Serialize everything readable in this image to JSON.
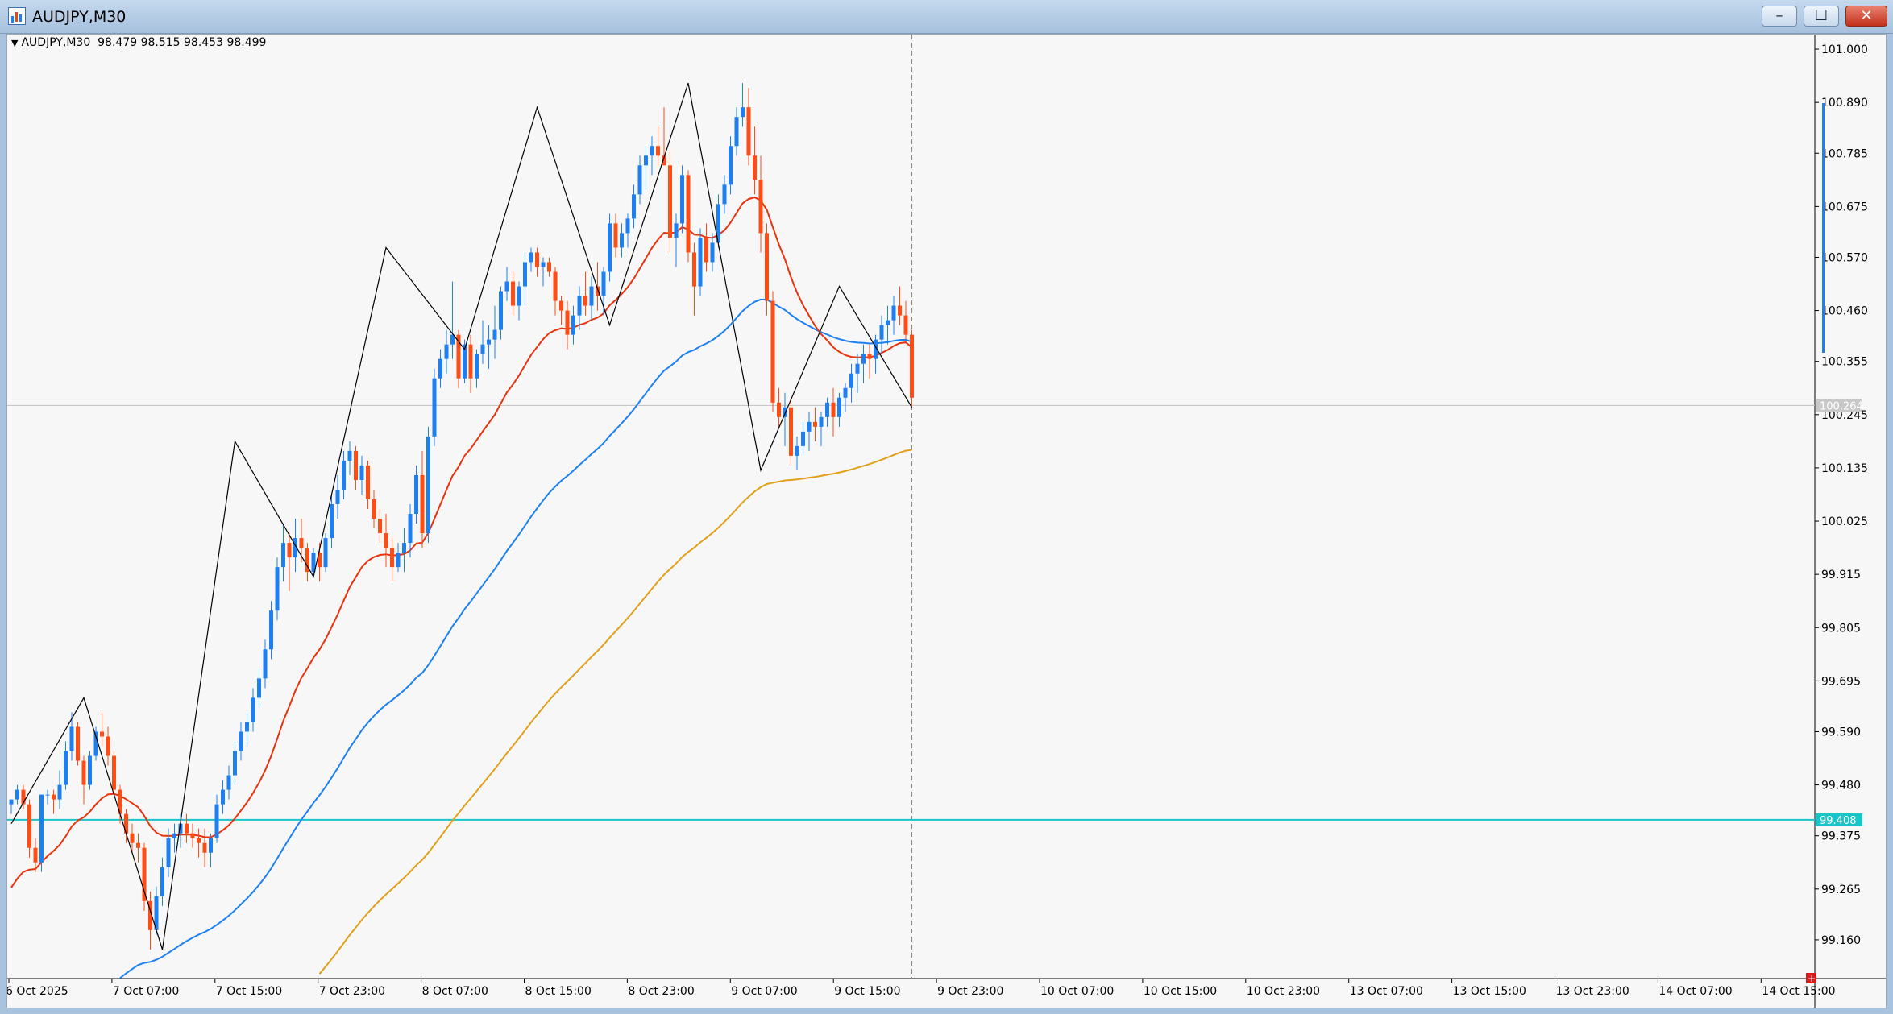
{
  "window": {
    "title": "AUDJPY,M30",
    "buttons": {
      "minimize": "–",
      "maximize": "☐",
      "close": "✕"
    }
  },
  "chart_info": {
    "symbol": "AUDJPY,M30",
    "ohlc": "98.479 98.515 98.453 98.499"
  },
  "colors": {
    "bull": "#1e80f0",
    "bear": "#ff4b14",
    "ma_fast": "#e8330e",
    "ma_mid": "#1e80f0",
    "ma_slow": "#e0a01a",
    "zigzag": "#000000",
    "hline": "#19c5c8",
    "price_line": "#c0c0c0"
  },
  "chart_data": {
    "type": "candlestick",
    "symbol": "AUDJPY",
    "timeframe": "M30",
    "ylim": [
      99.08,
      101.03
    ],
    "y_ticks": [
      "101.000",
      "100.890",
      "100.785",
      "100.675",
      "100.570",
      "100.460",
      "100.355",
      "100.245",
      "100.135",
      "100.025",
      "99.915",
      "99.805",
      "99.695",
      "99.590",
      "99.480",
      "99.375",
      "99.265",
      "99.160"
    ],
    "x_ticks": [
      "6 Oct 2025",
      "7 Oct 07:00",
      "7 Oct 15:00",
      "7 Oct 23:00",
      "8 Oct 07:00",
      "8 Oct 15:00",
      "8 Oct 23:00",
      "9 Oct 07:00",
      "9 Oct 15:00",
      "9 Oct 23:00",
      "10 Oct 07:00",
      "10 Oct 15:00",
      "10 Oct 23:00",
      "13 Oct 07:00",
      "13 Oct 15:00",
      "13 Oct 23:00",
      "14 Oct 07:00",
      "14 Oct 15:00"
    ],
    "current_price": "100.264",
    "horizontal_line": "99.408",
    "zigzag": [
      99.4,
      99.66,
      99.14,
      100.19,
      99.91,
      100.59,
      100.38,
      100.88,
      100.43,
      100.93,
      100.13,
      100.51,
      100.26
    ],
    "candles": [
      [
        99.44,
        99.45,
        99.42,
        99.45
      ],
      [
        99.45,
        99.48,
        99.44,
        99.47
      ],
      [
        99.47,
        99.48,
        99.43,
        99.44
      ],
      [
        99.44,
        99.45,
        99.33,
        99.35
      ],
      [
        99.35,
        99.37,
        99.3,
        99.32
      ],
      [
        99.32,
        99.46,
        99.3,
        99.46
      ],
      [
        99.46,
        99.47,
        99.44,
        99.46
      ],
      [
        99.46,
        99.47,
        99.42,
        99.45
      ],
      [
        99.45,
        99.51,
        99.43,
        99.48
      ],
      [
        99.48,
        99.57,
        99.47,
        99.55
      ],
      [
        99.55,
        99.63,
        99.53,
        99.6
      ],
      [
        99.6,
        99.61,
        99.52,
        99.53
      ],
      [
        99.53,
        99.54,
        99.44,
        99.48
      ],
      [
        99.48,
        99.55,
        99.47,
        99.54
      ],
      [
        99.54,
        99.6,
        99.53,
        99.59
      ],
      [
        99.59,
        99.63,
        99.56,
        99.58
      ],
      [
        99.58,
        99.6,
        99.52,
        99.54
      ],
      [
        99.54,
        99.55,
        99.46,
        99.47
      ],
      [
        99.47,
        99.48,
        99.4,
        99.42
      ],
      [
        99.42,
        99.43,
        99.36,
        99.38
      ],
      [
        99.38,
        99.4,
        99.34,
        99.36
      ],
      [
        99.36,
        99.38,
        99.32,
        99.35
      ],
      [
        99.35,
        99.36,
        99.22,
        99.24
      ],
      [
        99.24,
        99.26,
        99.14,
        99.18
      ],
      [
        99.18,
        99.27,
        99.17,
        99.25
      ],
      [
        99.25,
        99.33,
        99.23,
        99.31
      ],
      [
        99.31,
        99.39,
        99.29,
        99.37
      ],
      [
        99.37,
        99.4,
        99.34,
        99.38
      ],
      [
        99.38,
        99.42,
        99.35,
        99.4
      ],
      [
        99.4,
        99.42,
        99.36,
        99.38
      ],
      [
        99.38,
        99.4,
        99.35,
        99.37
      ],
      [
        99.37,
        99.39,
        99.33,
        99.36
      ],
      [
        99.36,
        99.39,
        99.31,
        99.34
      ],
      [
        99.34,
        99.38,
        99.31,
        99.37
      ],
      [
        99.37,
        99.46,
        99.36,
        99.44
      ],
      [
        99.44,
        99.49,
        99.42,
        99.47
      ],
      [
        99.47,
        99.52,
        99.45,
        99.5
      ],
      [
        99.5,
        99.57,
        99.48,
        99.55
      ],
      [
        99.55,
        99.61,
        99.53,
        99.59
      ],
      [
        99.59,
        99.63,
        99.56,
        99.61
      ],
      [
        99.61,
        99.68,
        99.59,
        99.66
      ],
      [
        99.66,
        99.72,
        99.64,
        99.7
      ],
      [
        99.7,
        99.78,
        99.68,
        99.76
      ],
      [
        99.76,
        99.86,
        99.74,
        99.84
      ],
      [
        99.84,
        99.95,
        99.82,
        99.93
      ],
      [
        99.93,
        100.02,
        99.9,
        99.98
      ],
      [
        99.98,
        100.0,
        99.88,
        99.95
      ],
      [
        99.95,
        100.03,
        99.92,
        99.99
      ],
      [
        99.99,
        100.03,
        99.94,
        99.97
      ],
      [
        99.97,
        99.98,
        99.9,
        99.92
      ],
      [
        99.92,
        99.97,
        99.91,
        99.96
      ],
      [
        99.96,
        99.98,
        99.9,
        99.93
      ],
      [
        99.93,
        100.0,
        99.92,
        99.99
      ],
      [
        99.99,
        100.08,
        99.97,
        100.06
      ],
      [
        100.06,
        100.12,
        100.03,
        100.09
      ],
      [
        100.09,
        100.17,
        100.07,
        100.15
      ],
      [
        100.15,
        100.19,
        100.12,
        100.17
      ],
      [
        100.17,
        100.18,
        100.09,
        100.11
      ],
      [
        100.11,
        100.16,
        100.08,
        100.14
      ],
      [
        100.14,
        100.15,
        100.05,
        100.07
      ],
      [
        100.07,
        100.09,
        100.01,
        100.03
      ],
      [
        100.03,
        100.05,
        99.98,
        100.0
      ],
      [
        100.0,
        100.04,
        99.93,
        99.97
      ],
      [
        99.97,
        99.99,
        99.9,
        99.93
      ],
      [
        99.93,
        99.98,
        99.92,
        99.96
      ],
      [
        99.96,
        100.01,
        99.92,
        99.98
      ],
      [
        99.98,
        100.06,
        99.95,
        100.04
      ],
      [
        100.04,
        100.14,
        100.02,
        100.12
      ],
      [
        100.12,
        100.17,
        99.97,
        100.0
      ],
      [
        100.0,
        100.22,
        99.98,
        100.2
      ],
      [
        100.2,
        100.34,
        100.18,
        100.32
      ],
      [
        100.32,
        100.38,
        100.3,
        100.36
      ],
      [
        100.36,
        100.42,
        100.33,
        100.39
      ],
      [
        100.39,
        100.52,
        100.36,
        100.41
      ],
      [
        100.41,
        100.42,
        100.3,
        100.32
      ],
      [
        100.32,
        100.4,
        100.31,
        100.39
      ],
      [
        100.39,
        100.41,
        100.29,
        100.32
      ],
      [
        100.32,
        100.38,
        100.3,
        100.37
      ],
      [
        100.37,
        100.44,
        100.35,
        100.39
      ],
      [
        100.39,
        100.43,
        100.34,
        100.4
      ],
      [
        100.4,
        100.47,
        100.36,
        100.42
      ],
      [
        100.42,
        100.51,
        100.4,
        100.5
      ],
      [
        100.5,
        100.55,
        100.48,
        100.52
      ],
      [
        100.52,
        100.54,
        100.45,
        100.47
      ],
      [
        100.47,
        100.52,
        100.44,
        100.51
      ],
      [
        100.51,
        100.58,
        100.47,
        100.56
      ],
      [
        100.56,
        100.59,
        100.54,
        100.58
      ],
      [
        100.58,
        100.59,
        100.53,
        100.55
      ],
      [
        100.55,
        100.57,
        100.51,
        100.56
      ],
      [
        100.56,
        100.57,
        100.53,
        100.54
      ],
      [
        100.54,
        100.55,
        100.45,
        100.48
      ],
      [
        100.48,
        100.49,
        100.43,
        100.46
      ],
      [
        100.46,
        100.48,
        100.38,
        100.41
      ],
      [
        100.41,
        100.47,
        100.39,
        100.45
      ],
      [
        100.45,
        100.51,
        100.42,
        100.49
      ],
      [
        100.49,
        100.54,
        100.45,
        100.47
      ],
      [
        100.47,
        100.53,
        100.44,
        100.51
      ],
      [
        100.51,
        100.56,
        100.46,
        100.49
      ],
      [
        100.49,
        100.55,
        100.45,
        100.54
      ],
      [
        100.54,
        100.66,
        100.52,
        100.64
      ],
      [
        100.64,
        100.66,
        100.57,
        100.59
      ],
      [
        100.59,
        100.64,
        100.57,
        100.62
      ],
      [
        100.62,
        100.66,
        100.59,
        100.65
      ],
      [
        100.65,
        100.72,
        100.63,
        100.7
      ],
      [
        100.7,
        100.78,
        100.68,
        100.76
      ],
      [
        100.76,
        100.8,
        100.71,
        100.78
      ],
      [
        100.78,
        100.82,
        100.74,
        100.8
      ],
      [
        100.8,
        100.84,
        100.76,
        100.78
      ],
      [
        100.78,
        100.88,
        100.76,
        100.76
      ],
      [
        100.76,
        100.79,
        100.58,
        100.61
      ],
      [
        100.61,
        100.66,
        100.55,
        100.64
      ],
      [
        100.64,
        100.76,
        100.62,
        100.74
      ],
      [
        100.74,
        100.75,
        100.56,
        100.58
      ],
      [
        100.58,
        100.6,
        100.45,
        100.51
      ],
      [
        100.51,
        100.63,
        100.49,
        100.61
      ],
      [
        100.61,
        100.64,
        100.54,
        100.56
      ],
      [
        100.56,
        100.62,
        100.54,
        100.6
      ],
      [
        100.6,
        100.7,
        100.59,
        100.68
      ],
      [
        100.68,
        100.74,
        100.66,
        100.72
      ],
      [
        100.72,
        100.82,
        100.7,
        100.8
      ],
      [
        100.8,
        100.88,
        100.78,
        100.86
      ],
      [
        100.86,
        100.93,
        100.84,
        100.88
      ],
      [
        100.88,
        100.92,
        100.76,
        100.78
      ],
      [
        100.78,
        100.84,
        100.7,
        100.73
      ],
      [
        100.73,
        100.78,
        100.58,
        100.62
      ],
      [
        100.62,
        100.64,
        100.45,
        100.48
      ],
      [
        100.48,
        100.5,
        100.25,
        100.27
      ],
      [
        100.27,
        100.3,
        100.22,
        100.24
      ],
      [
        100.24,
        100.29,
        100.18,
        100.26
      ],
      [
        100.26,
        100.28,
        100.14,
        100.16
      ],
      [
        100.16,
        100.2,
        100.13,
        100.18
      ],
      [
        100.18,
        100.23,
        100.16,
        100.21
      ],
      [
        100.21,
        100.25,
        100.17,
        100.23
      ],
      [
        100.23,
        100.26,
        100.19,
        100.22
      ],
      [
        100.22,
        100.25,
        100.18,
        100.24
      ],
      [
        100.24,
        100.28,
        100.22,
        100.27
      ],
      [
        100.27,
        100.3,
        100.2,
        100.24
      ],
      [
        100.24,
        100.29,
        100.22,
        100.28
      ],
      [
        100.28,
        100.31,
        100.25,
        100.3
      ],
      [
        100.3,
        100.35,
        100.27,
        100.33
      ],
      [
        100.33,
        100.37,
        100.29,
        100.35
      ],
      [
        100.35,
        100.39,
        100.31,
        100.37
      ],
      [
        100.37,
        100.39,
        100.32,
        100.36
      ],
      [
        100.36,
        100.41,
        100.33,
        100.4
      ],
      [
        100.4,
        100.45,
        100.37,
        100.43
      ],
      [
        100.43,
        100.47,
        100.39,
        100.44
      ],
      [
        100.44,
        100.49,
        100.41,
        100.47
      ],
      [
        100.47,
        100.51,
        100.43,
        100.45
      ],
      [
        100.45,
        100.48,
        100.4,
        100.41
      ],
      [
        100.41,
        100.42,
        100.26,
        100.28
      ]
    ]
  }
}
